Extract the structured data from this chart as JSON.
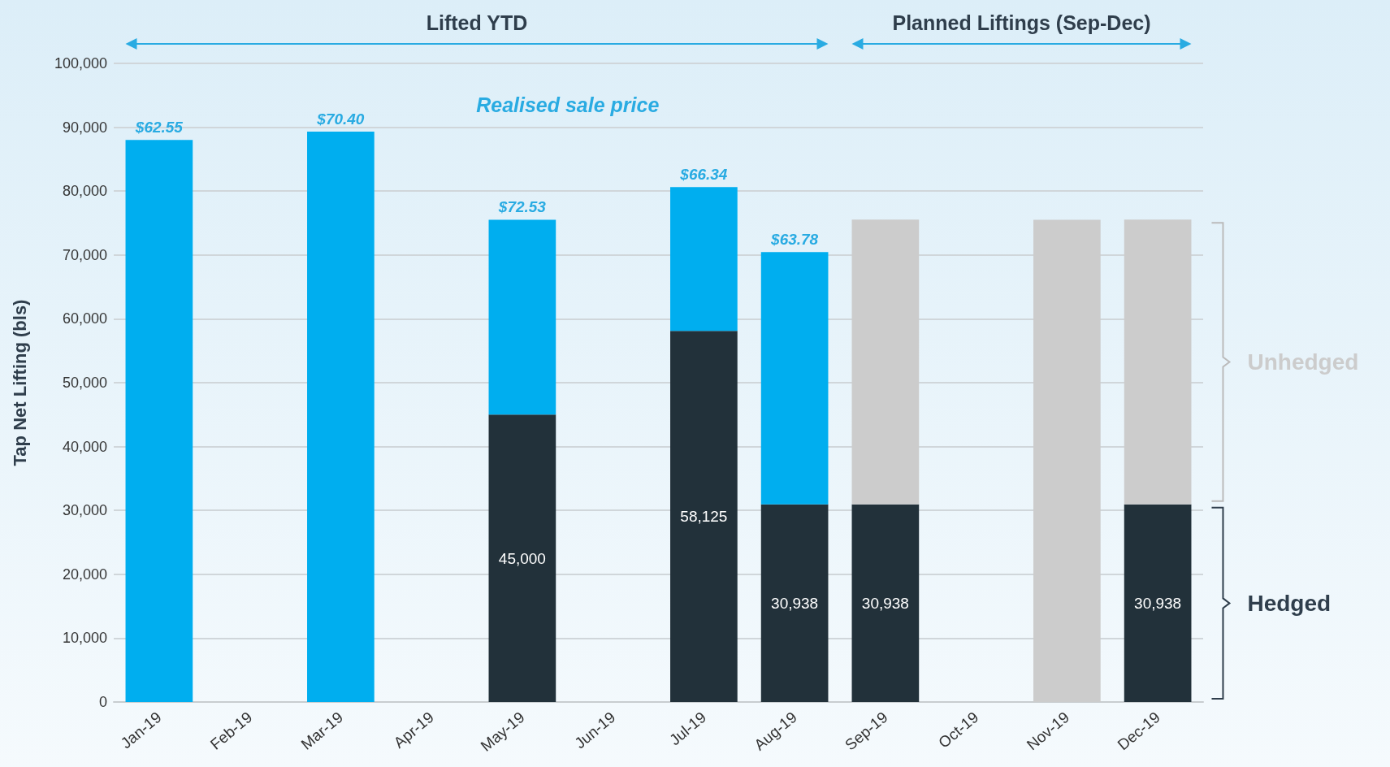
{
  "chart_data": {
    "type": "bar",
    "stacked": true,
    "ylabel": "Tap Net Lifting (bls)",
    "categories": [
      "Jan-19",
      "Feb-19",
      "Mar-19",
      "Apr-19",
      "May-19",
      "Jun-19",
      "Jul-19",
      "Aug-19",
      "Sep-19",
      "Oct-19",
      "Nov-19",
      "Dec-19"
    ],
    "series": [
      {
        "color": "#22313a",
        "values": [
          null,
          null,
          null,
          null,
          45000,
          null,
          58125,
          30938,
          30938,
          null,
          null,
          30938
        ],
        "value_labels": [
          null,
          null,
          null,
          null,
          "45,000",
          null,
          "58,125",
          "30,938",
          "30,938",
          null,
          null,
          "30,938"
        ]
      },
      {
        "color": "#00aeef",
        "values": [
          88000,
          null,
          89300,
          null,
          30500,
          null,
          22500,
          39500,
          null,
          null,
          null,
          null
        ]
      },
      {
        "color": "#cccccc",
        "values": [
          null,
          null,
          null,
          null,
          null,
          null,
          null,
          null,
          44600,
          null,
          75500,
          44600
        ]
      }
    ],
    "ylim": [
      0,
      100000
    ],
    "yticks": [
      {
        "value": 0,
        "label": "0"
      },
      {
        "value": 10000,
        "label": "10,000"
      },
      {
        "value": 20000,
        "label": "20,000"
      },
      {
        "value": 30000,
        "label": "30,000"
      },
      {
        "value": 40000,
        "label": "40,000"
      },
      {
        "value": 50000,
        "label": "50,000"
      },
      {
        "value": 60000,
        "label": "60,000"
      },
      {
        "value": 70000,
        "label": "70,000"
      },
      {
        "value": 80000,
        "label": "80,000"
      },
      {
        "value": 90000,
        "label": "90,000"
      },
      {
        "value": 100000,
        "label": "100,000"
      }
    ],
    "grid": "y",
    "annotations": [
      "Lifted YTD",
      "Planned Liftings (Sep-Dec)",
      "Realised sale price",
      "Unhedged",
      "Hedged",
      {
        "text": "$62.55",
        "x": "Jan-19",
        "y": 88000
      },
      {
        "text": "$70.40",
        "x": "Mar-19",
        "y": 89300
      },
      {
        "text": "$72.53",
        "x": "May-19",
        "y": 75500
      },
      {
        "text": "$66.34",
        "x": "Jul-19",
        "y": 80625
      },
      {
        "text": "$63.78",
        "x": "Aug-19",
        "y": 70438
      }
    ]
  }
}
